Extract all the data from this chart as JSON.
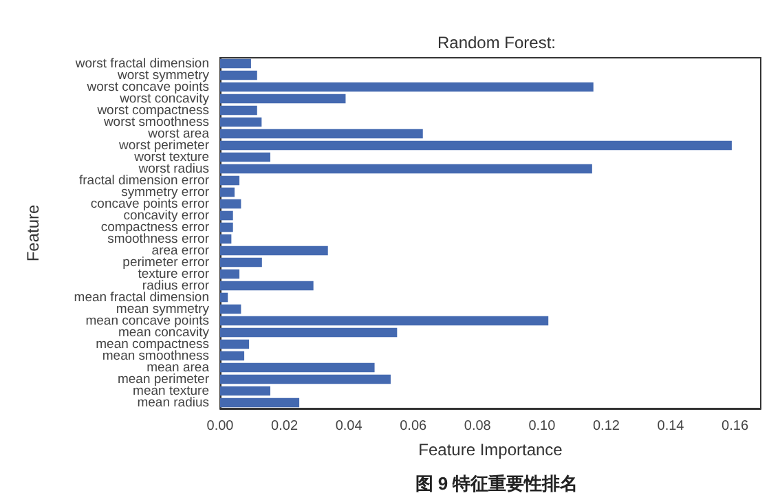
{
  "chart_data": {
    "type": "bar",
    "orientation": "horizontal",
    "title": "Random Forest:",
    "xlabel": "Feature Importance",
    "ylabel": "Feature",
    "annotations": [
      "图 9 特征重要性排名"
    ],
    "categories": [
      "worst fractal dimension",
      "worst symmetry",
      "worst concave points",
      "worst concavity",
      "worst compactness",
      "worst smoothness",
      "worst area",
      "worst perimeter",
      "worst texture",
      "worst radius",
      "fractal dimension error",
      "symmetry error",
      "concave points error",
      "concavity error",
      "compactness error",
      "smoothness error",
      "area error",
      "perimeter error",
      "texture error",
      "radius error",
      "mean fractal dimension",
      "mean symmetry",
      "mean concave points",
      "mean concavity",
      "mean compactness",
      "mean smoothness",
      "mean area",
      "mean perimeter",
      "mean texture",
      "mean radius"
    ],
    "values": [
      0.0096,
      0.0115,
      0.116,
      0.039,
      0.0115,
      0.0129,
      0.063,
      0.159,
      0.0156,
      0.1156,
      0.006,
      0.0045,
      0.0065,
      0.004,
      0.004,
      0.0035,
      0.0335,
      0.013,
      0.006,
      0.029,
      0.0024,
      0.0065,
      0.102,
      0.055,
      0.009,
      0.0075,
      0.048,
      0.053,
      0.0156,
      0.0246
    ],
    "color": "#4469b0",
    "xlim": [
      0,
      0.168
    ],
    "xticks": [
      {
        "value": 0,
        "label": "0.00"
      },
      {
        "value": 0.02,
        "label": "0.02"
      },
      {
        "value": 0.04,
        "label": "0.04"
      },
      {
        "value": 0.06,
        "label": "0.06"
      },
      {
        "value": 0.08,
        "label": "0.08"
      },
      {
        "value": 0.1,
        "label": "0.10"
      },
      {
        "value": 0.12,
        "label": "0.12"
      },
      {
        "value": 0.14,
        "label": "0.14"
      },
      {
        "value": 0.16,
        "label": "0.16"
      }
    ],
    "grid": false
  }
}
